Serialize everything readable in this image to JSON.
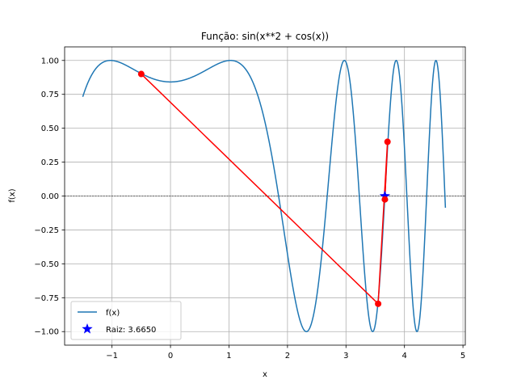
{
  "chart_data": {
    "type": "line",
    "title": "Função: sin(x**2 + cos(x))",
    "xlabel": "x",
    "ylabel": "f(x)",
    "xlim": [
      -1.81,
      5.04
    ],
    "ylim": [
      -1.1,
      1.1
    ],
    "x_ticks": [
      -1,
      0,
      1,
      2,
      3,
      4,
      5
    ],
    "y_ticks": [
      -1.0,
      -0.75,
      -0.5,
      -0.25,
      0.0,
      0.25,
      0.5,
      0.75,
      1.0
    ],
    "x_tick_labels": [
      "−1",
      "0",
      "1",
      "2",
      "3",
      "4",
      "5"
    ],
    "y_tick_labels": [
      "−1.00",
      "−0.75",
      "−0.50",
      "−0.25",
      "0.00",
      "0.25",
      "0.50",
      "0.75",
      "1.00"
    ],
    "grid": true,
    "legend_position": "lower-left",
    "series": [
      {
        "name": "f(x)",
        "kind": "function",
        "expression": "sin(x**2 + cos(x))",
        "x_range": [
          -1.5,
          4.7
        ],
        "color": "#1f77b4"
      },
      {
        "name": "",
        "kind": "secant-iterations",
        "color": "#ff0000",
        "x": [
          -0.5,
          3.55,
          3.71,
          3.665
        ],
        "y": [
          0.9,
          -0.795,
          0.4,
          -0.025
        ]
      },
      {
        "name": "Raiz: 3.6650",
        "kind": "root-marker",
        "color": "#0000ff",
        "x": [
          3.665
        ],
        "y": [
          0.0
        ]
      }
    ],
    "reference_line": {
      "y": 0,
      "style": "dashed",
      "color": "#000000"
    }
  },
  "legend": {
    "items": [
      "f(x)",
      "Raiz: 3.6650"
    ]
  }
}
